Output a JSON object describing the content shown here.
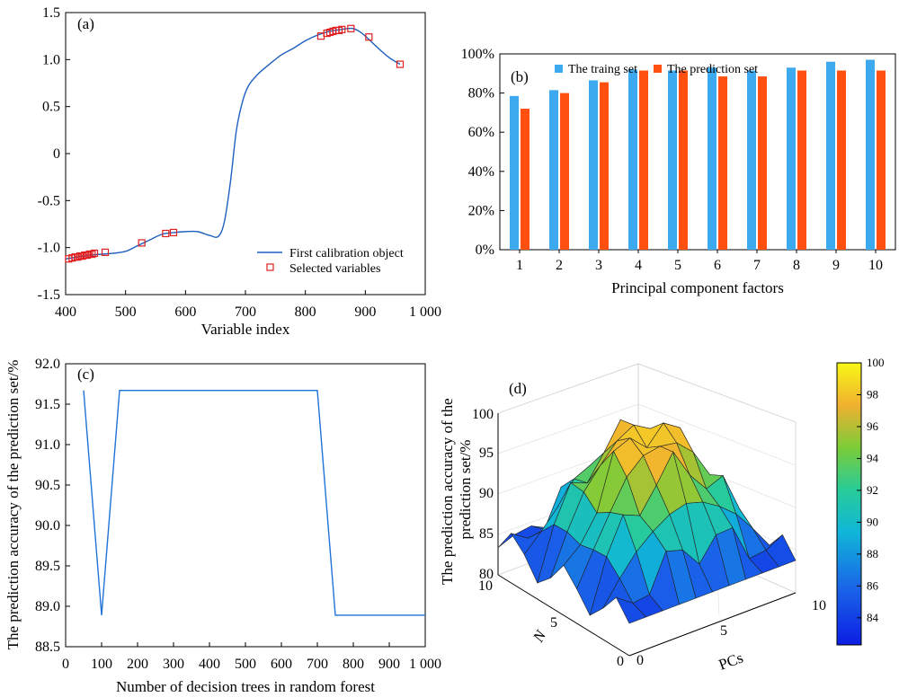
{
  "chart_data": [
    {
      "panel": "(a)",
      "type": "line",
      "xlabel": "Variable index",
      "ylabel": "",
      "xlim": [
        400,
        1000
      ],
      "ylim": [
        -1.5,
        1.5
      ],
      "xticks": [
        "400",
        "500",
        "600",
        "700",
        "800",
        "900",
        "1 000"
      ],
      "yticks": [
        "-1.5",
        "-1.0",
        "-0.5",
        "0",
        "0.5",
        "1.0",
        "1.5"
      ],
      "legend_position": "bottom-right",
      "series": [
        {
          "name": "First calibration object",
          "color": "#1f5fbf",
          "x": [
            400,
            420,
            440,
            460,
            480,
            500,
            520,
            540,
            560,
            580,
            600,
            620,
            640,
            655,
            665,
            675,
            685,
            695,
            705,
            720,
            740,
            760,
            780,
            800,
            820,
            840,
            860,
            870,
            880,
            890,
            900,
            920,
            940,
            958
          ],
          "y": [
            -1.12,
            -1.1,
            -1.08,
            -1.07,
            -1.06,
            -1.04,
            -0.98,
            -0.92,
            -0.86,
            -0.84,
            -0.83,
            -0.83,
            -0.87,
            -0.88,
            -0.72,
            -0.3,
            0.25,
            0.55,
            0.72,
            0.84,
            0.95,
            1.05,
            1.12,
            1.2,
            1.26,
            1.3,
            1.32,
            1.33,
            1.33,
            1.3,
            1.25,
            1.13,
            1.02,
            0.95
          ]
        },
        {
          "name": "Selected variables",
          "color": "#e02020",
          "x": [
            405,
            411,
            416,
            420,
            424,
            428,
            432,
            436,
            440,
            444,
            448,
            466,
            527,
            567,
            580,
            826,
            836,
            841,
            846,
            851,
            856,
            861,
            876,
            906,
            958
          ],
          "y": [
            -1.12,
            -1.11,
            -1.1,
            -1.1,
            -1.09,
            -1.09,
            -1.08,
            -1.08,
            -1.07,
            -1.07,
            -1.06,
            -1.05,
            -0.95,
            -0.85,
            -0.84,
            1.25,
            1.28,
            1.29,
            1.3,
            1.31,
            1.31,
            1.32,
            1.33,
            1.24,
            0.95
          ]
        }
      ]
    },
    {
      "panel": "(b)",
      "type": "bar",
      "xlabel": "Principal component factors",
      "ylabel": "",
      "ylim": [
        0,
        100
      ],
      "yticks": [
        "0%",
        "20%",
        "40%",
        "60%",
        "80%",
        "100%"
      ],
      "categories": [
        "1",
        "2",
        "3",
        "4",
        "5",
        "6",
        "7",
        "8",
        "9",
        "10"
      ],
      "legend_position": "top",
      "series": [
        {
          "name": "The traing set",
          "color": "#3daaf0",
          "values": [
            78.5,
            81.5,
            86.5,
            92.0,
            91.5,
            93.0,
            91.5,
            93.0,
            96.0,
            97.0
          ]
        },
        {
          "name": "The prediction set",
          "color": "#ff5010",
          "values": [
            72.0,
            80.0,
            85.5,
            91.5,
            91.5,
            88.5,
            88.5,
            91.5,
            91.5,
            91.5
          ]
        }
      ]
    },
    {
      "panel": "(c)",
      "type": "line",
      "xlabel": "Number of decision trees in random forest",
      "ylabel": "The prediction accuracy of the prediction set/%",
      "xlim": [
        0,
        1000
      ],
      "ylim": [
        88.5,
        92.0
      ],
      "xticks": [
        "0",
        "100",
        "200",
        "300",
        "400",
        "500",
        "600",
        "700",
        "800",
        "900",
        "1 000"
      ],
      "yticks": [
        "88.5",
        "89.0",
        "89.5",
        "90.0",
        "90.5",
        "91.0",
        "91.5",
        "92.0"
      ],
      "series": [
        {
          "color": "#1f72d8",
          "x": [
            50,
            100,
            150,
            700,
            750,
            1000
          ],
          "y": [
            91.67,
            88.89,
            91.67,
            91.67,
            88.89,
            88.89
          ]
        }
      ]
    },
    {
      "panel": "(d)",
      "type": "heatmap",
      "xlabel": "PCs",
      "ylabel": "N",
      "zlabel": "The prediction accuracy of the prediction set/%",
      "zlim": [
        80,
        100
      ],
      "x_ticks": [
        "0",
        "5",
        "10"
      ],
      "y_ticks": [
        "0",
        "5",
        "10"
      ],
      "z_ticks": [
        "80",
        "85",
        "90",
        "95",
        "100"
      ],
      "colorbar_ticks": [
        "84",
        "86",
        "88",
        "90",
        "92",
        "94",
        "96",
        "98",
        "100"
      ],
      "colorbar_range": [
        82.3,
        100
      ],
      "colormap": "parula"
    }
  ]
}
